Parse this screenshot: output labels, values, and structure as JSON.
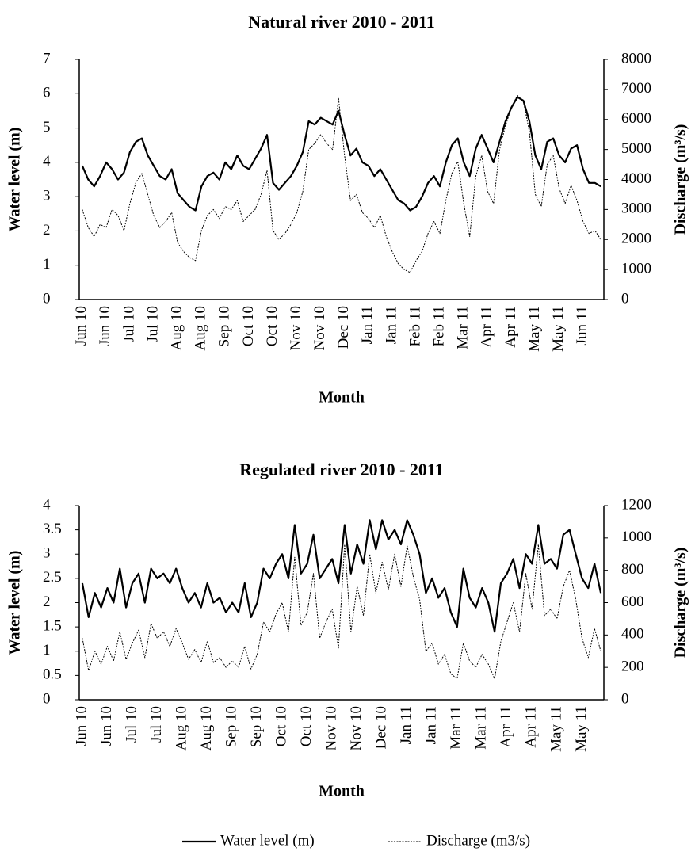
{
  "chart_data": [
    {
      "type": "line",
      "title": "Natural river 2010 - 2011",
      "x_label": "Month",
      "y_label": "Water level (m)",
      "y2_label": "Discharge (m³/s)",
      "legend": "bottom",
      "categories": [
        "Jun 10",
        null,
        null,
        null,
        "Jun 10",
        null,
        null,
        null,
        "Jul 10",
        null,
        null,
        null,
        "Jul 10",
        null,
        null,
        null,
        "Aug 10",
        null,
        null,
        null,
        "Aug 10",
        null,
        null,
        null,
        "Sep 10",
        null,
        null,
        null,
        "Oct 10",
        null,
        null,
        null,
        "Oct 10",
        null,
        null,
        null,
        "Nov 10",
        null,
        null,
        null,
        "Nov 10",
        null,
        null,
        null,
        "Dec 10",
        null,
        null,
        null,
        "Jan 11",
        null,
        null,
        null,
        "Jan 11",
        null,
        null,
        null,
        "Feb 11",
        null,
        null,
        null,
        "Feb 11",
        null,
        null,
        null,
        "Mar 11",
        null,
        null,
        null,
        "Apr 11",
        null,
        null,
        null,
        "Apr 11",
        null,
        null,
        null,
        "May 11",
        null,
        null,
        null,
        "May 11",
        null,
        null,
        null,
        "Jun 11",
        null,
        null,
        null
      ],
      "ylim": [
        0,
        7
      ],
      "yticks": [
        0,
        1,
        2,
        3,
        4,
        5,
        6,
        7
      ],
      "y2lim": [
        0,
        8000
      ],
      "y2ticks": [
        0,
        1000,
        2000,
        3000,
        4000,
        5000,
        6000,
        7000,
        8000
      ],
      "series": [
        {
          "name": "Water level (m)",
          "color": "#000000",
          "style": "solid",
          "values": [
            3.9,
            3.5,
            3.3,
            3.6,
            4.0,
            3.8,
            3.5,
            3.7,
            4.3,
            4.6,
            4.7,
            4.2,
            3.9,
            3.6,
            3.5,
            3.8,
            3.1,
            2.9,
            2.7,
            2.6,
            3.3,
            3.6,
            3.7,
            3.5,
            4.0,
            3.8,
            4.2,
            3.9,
            3.8,
            4.1,
            4.4,
            4.8,
            3.4,
            3.2,
            3.4,
            3.6,
            3.9,
            4.3,
            5.2,
            5.1,
            5.3,
            5.2,
            5.1,
            5.5,
            4.8,
            4.2,
            4.4,
            4.0,
            3.9,
            3.6,
            3.8,
            3.5,
            3.2,
            2.9,
            2.8,
            2.6,
            2.7,
            3.0,
            3.4,
            3.6,
            3.3,
            4.0,
            4.5,
            4.7,
            4.0,
            3.6,
            4.4,
            4.8,
            4.4,
            4.0,
            4.6,
            5.2,
            5.6,
            5.9,
            5.8,
            5.2,
            4.2,
            3.8,
            4.6,
            4.7,
            4.2,
            4.0,
            4.4,
            4.5,
            3.8,
            3.4,
            3.4,
            3.3
          ]
        },
        {
          "name": "Discharge (m3/s)",
          "color": "#000000",
          "style": "dotted",
          "axis": "y2",
          "values": [
            3000,
            2400,
            2100,
            2500,
            2400,
            3000,
            2800,
            2300,
            3200,
            3900,
            4200,
            3500,
            2800,
            2400,
            2600,
            2900,
            1900,
            1600,
            1400,
            1300,
            2300,
            2800,
            3000,
            2700,
            3100,
            3000,
            3300,
            2600,
            2800,
            3000,
            3500,
            4300,
            2300,
            2000,
            2200,
            2500,
            2900,
            3600,
            5000,
            5200,
            5500,
            5200,
            5000,
            6700,
            4800,
            3300,
            3500,
            2900,
            2700,
            2400,
            2800,
            2100,
            1600,
            1200,
            1000,
            900,
            1300,
            1600,
            2200,
            2600,
            2200,
            3300,
            4200,
            4600,
            3200,
            2100,
            4100,
            4800,
            3600,
            3200,
            5000,
            5800,
            6400,
            6800,
            6600,
            5600,
            3500,
            3100,
            4500,
            4800,
            3700,
            3200,
            3800,
            3300,
            2600,
            2200,
            2300,
            2000
          ]
        }
      ]
    },
    {
      "type": "line",
      "title": "Regulated river 2010 - 2011",
      "x_label": "Month",
      "y_label": "Water level (m)",
      "y2_label": "Discharge (m³/s)",
      "categories": [
        "Jun 10",
        null,
        null,
        null,
        "Jun 10",
        null,
        null,
        null,
        "Jul 10",
        null,
        null,
        null,
        "Jul 10",
        null,
        null,
        null,
        "Aug 10",
        null,
        null,
        null,
        "Aug 10",
        null,
        null,
        null,
        "Sep 10",
        null,
        null,
        null,
        "Sep 10",
        null,
        null,
        null,
        "Oct 10",
        null,
        null,
        null,
        "Oct 10",
        null,
        null,
        null,
        "Nov 10",
        null,
        null,
        null,
        "Nov 10",
        null,
        null,
        null,
        "Dec 10",
        null,
        null,
        null,
        "Jan 11",
        null,
        null,
        null,
        "Jan 11",
        null,
        null,
        null,
        "Mar 11",
        null,
        null,
        null,
        "Mar 11",
        null,
        null,
        null,
        "Apr 11",
        null,
        null,
        null,
        "Apr 11",
        null,
        null,
        null,
        "May 11",
        null,
        null,
        null,
        "May 11",
        null,
        null,
        null
      ],
      "ylim": [
        0,
        4
      ],
      "yticks": [
        0,
        0.5,
        1,
        1.5,
        2,
        2.5,
        3,
        3.5,
        4
      ],
      "y2lim": [
        0,
        1200
      ],
      "y2ticks": [
        0,
        200,
        400,
        600,
        800,
        1000,
        1200
      ],
      "series": [
        {
          "color": "#000000",
          "style": "solid",
          "values": [
            2.4,
            1.7,
            2.2,
            1.9,
            2.3,
            2.0,
            2.7,
            1.9,
            2.4,
            2.6,
            2.0,
            2.7,
            2.5,
            2.6,
            2.4,
            2.7,
            2.3,
            2.0,
            2.2,
            1.9,
            2.4,
            2.0,
            2.1,
            1.8,
            2.0,
            1.8,
            2.4,
            1.7,
            2.0,
            2.7,
            2.5,
            2.8,
            3.0,
            2.5,
            3.6,
            2.6,
            2.8,
            3.4,
            2.5,
            2.7,
            2.9,
            2.4,
            3.6,
            2.6,
            3.2,
            2.8,
            3.7,
            3.1,
            3.7,
            3.3,
            3.5,
            3.2,
            3.7,
            3.4,
            3.0,
            2.2,
            2.5,
            2.1,
            2.3,
            1.8,
            1.5,
            2.7,
            2.1,
            1.9,
            2.3,
            2.0,
            1.4,
            2.4,
            2.6,
            2.9,
            2.3,
            3.0,
            2.8,
            3.6,
            2.8,
            2.9,
            2.7,
            3.4,
            3.5,
            3.0,
            2.5,
            2.3,
            2.8,
            2.2
          ]
        },
        {
          "color": "#000000",
          "style": "dotted",
          "axis": "y2",
          "values": [
            380,
            180,
            300,
            220,
            330,
            240,
            420,
            250,
            350,
            430,
            260,
            470,
            380,
            420,
            330,
            440,
            350,
            250,
            310,
            230,
            360,
            230,
            260,
            200,
            240,
            200,
            330,
            190,
            280,
            480,
            420,
            530,
            600,
            420,
            880,
            460,
            540,
            780,
            380,
            480,
            560,
            320,
            960,
            420,
            700,
            520,
            900,
            660,
            850,
            680,
            900,
            700,
            950,
            760,
            620,
            300,
            350,
            220,
            280,
            160,
            130,
            350,
            240,
            200,
            280,
            220,
            130,
            360,
            480,
            600,
            420,
            780,
            560,
            960,
            520,
            560,
            500,
            700,
            800,
            620,
            380,
            260,
            440,
            300
          ]
        }
      ]
    }
  ]
}
